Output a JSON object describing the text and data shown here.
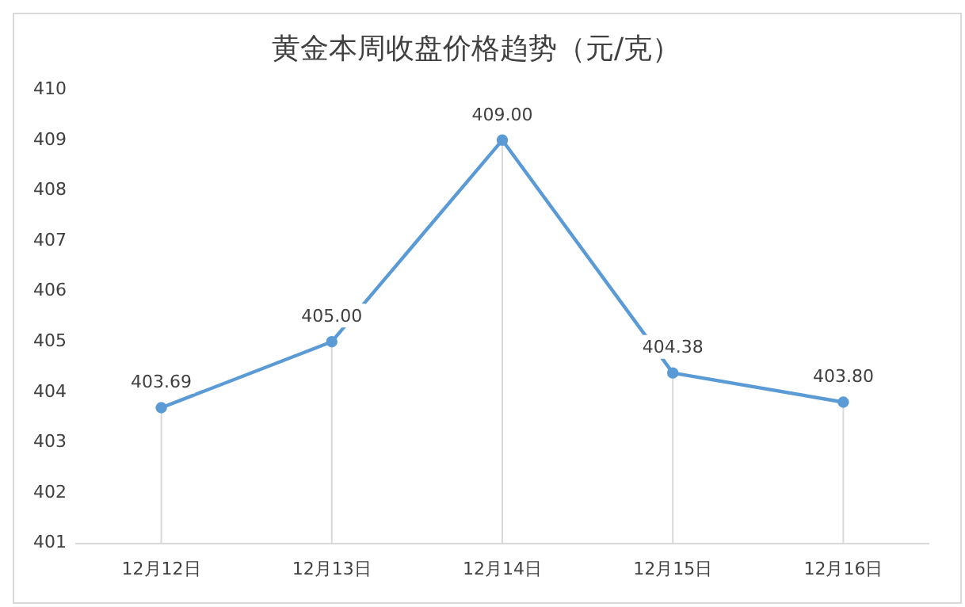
{
  "chart_data": {
    "type": "line",
    "title": "黄金本周收盘价格趋势（元/克）",
    "categories": [
      "12月12日",
      "12月13日",
      "12月14日",
      "12月15日",
      "12月16日"
    ],
    "series": [
      {
        "color": "#5b9bd5",
        "values": [
          403.69,
          405.0,
          409.0,
          404.38,
          403.8
        ],
        "value_labels": [
          "403.69",
          "405.00",
          "409.00",
          "404.38",
          "403.80"
        ]
      }
    ],
    "ylim": [
      401,
      410
    ],
    "yticks": [
      401,
      402,
      403,
      404,
      405,
      406,
      407,
      408,
      409,
      410
    ],
    "grid": "x",
    "legend": false,
    "marker": "circle",
    "line_style": "solid"
  }
}
